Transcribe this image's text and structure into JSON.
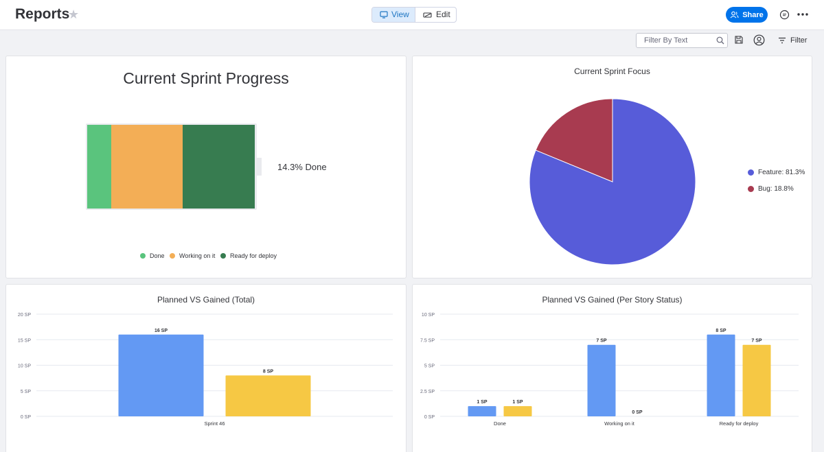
{
  "header": {
    "title": "Reports",
    "view_label": "View",
    "edit_label": "Edit",
    "share_label": "Share"
  },
  "toolbar": {
    "filter_placeholder": "Filter By Text",
    "filter_label": "Filter"
  },
  "colors": {
    "done": "#5ac47d",
    "working": "#f3ae56",
    "ready": "#377c50",
    "feature": "#575cd9",
    "bug": "#a83b50",
    "planned": "#6399f3",
    "gained": "#f6c844",
    "accent": "#0073ea"
  },
  "progress": {
    "title": "Current Sprint Progress",
    "done_label": "14.3% Done",
    "segments": [
      {
        "name": "Done",
        "value": 1
      },
      {
        "name": "Working on it",
        "value": 3
      },
      {
        "name": "Ready for deploy",
        "value": 3
      }
    ],
    "legend": [
      "Done",
      "Working on it",
      "Ready for deploy"
    ]
  },
  "chart_data": [
    {
      "type": "pie",
      "title": "Current Sprint Focus",
      "slices": [
        {
          "label": "Feature: 81.3%",
          "value": 81.3
        },
        {
          "label": "Bug: 18.8%",
          "value": 18.8
        }
      ],
      "legend": "right"
    },
    {
      "type": "bar",
      "title": "Planned VS Gained (Total)",
      "categories": [
        "Sprint 46"
      ],
      "series": [
        {
          "values": [
            16
          ],
          "labels": [
            "16 SP"
          ]
        },
        {
          "values": [
            8
          ],
          "labels": [
            "8 SP"
          ]
        }
      ],
      "yticks": [
        "0 SP",
        "5 SP",
        "10 SP",
        "15 SP",
        "20 SP"
      ],
      "ylim": [
        0,
        20
      ],
      "grid": true
    },
    {
      "type": "bar",
      "title": "Planned VS Gained (Per Story Status)",
      "categories": [
        "Done",
        "Working on it",
        "Ready for deploy"
      ],
      "series": [
        {
          "values": [
            1,
            7,
            8
          ],
          "labels": [
            "1 SP",
            "7 SP",
            "8 SP"
          ]
        },
        {
          "values": [
            1,
            0,
            7
          ],
          "labels": [
            "1 SP",
            "0 SP",
            "7 SP"
          ]
        }
      ],
      "yticks": [
        "0 SP",
        "2.5 SP",
        "5 SP",
        "7.5 SP",
        "10 SP"
      ],
      "ylim": [
        0,
        10
      ],
      "grid": true
    }
  ]
}
